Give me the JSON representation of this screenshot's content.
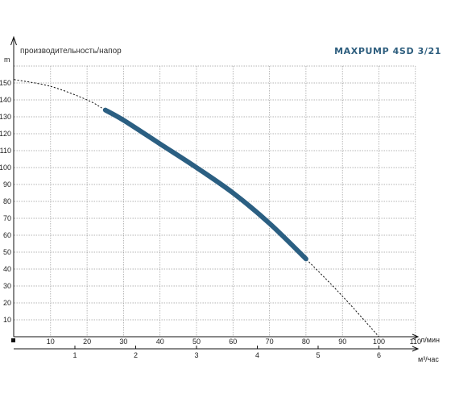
{
  "colors": {
    "curve": "#2b5f82",
    "title": "#2e5e7e",
    "dashed_curve": "#111111"
  },
  "chart_data": {
    "type": "line",
    "title": "MAXPUMP 4SD 3/21",
    "subtitle": "производительность/напор",
    "ylabel": "m",
    "xlabel": "л/мин",
    "x2label": "м³/час",
    "xlim": [
      0,
      110
    ],
    "ylim": [
      0,
      160
    ],
    "xticks": [
      10,
      20,
      30,
      40,
      50,
      60,
      70,
      80,
      90,
      100,
      110
    ],
    "yticks": [
      10,
      20,
      30,
      40,
      50,
      60,
      70,
      80,
      90,
      100,
      110,
      120,
      130,
      140,
      150
    ],
    "x2ticks": [
      1,
      2,
      3,
      4,
      5,
      6
    ],
    "grid": true,
    "operating_range": [
      25,
      80
    ],
    "series": [
      {
        "x": [
          0,
          10,
          20,
          25,
          30,
          40,
          50,
          60,
          70,
          80,
          90,
          100
        ],
        "y": [
          152,
          148,
          140,
          134,
          128,
          114,
          100,
          85,
          67,
          46,
          24,
          0
        ]
      }
    ]
  }
}
